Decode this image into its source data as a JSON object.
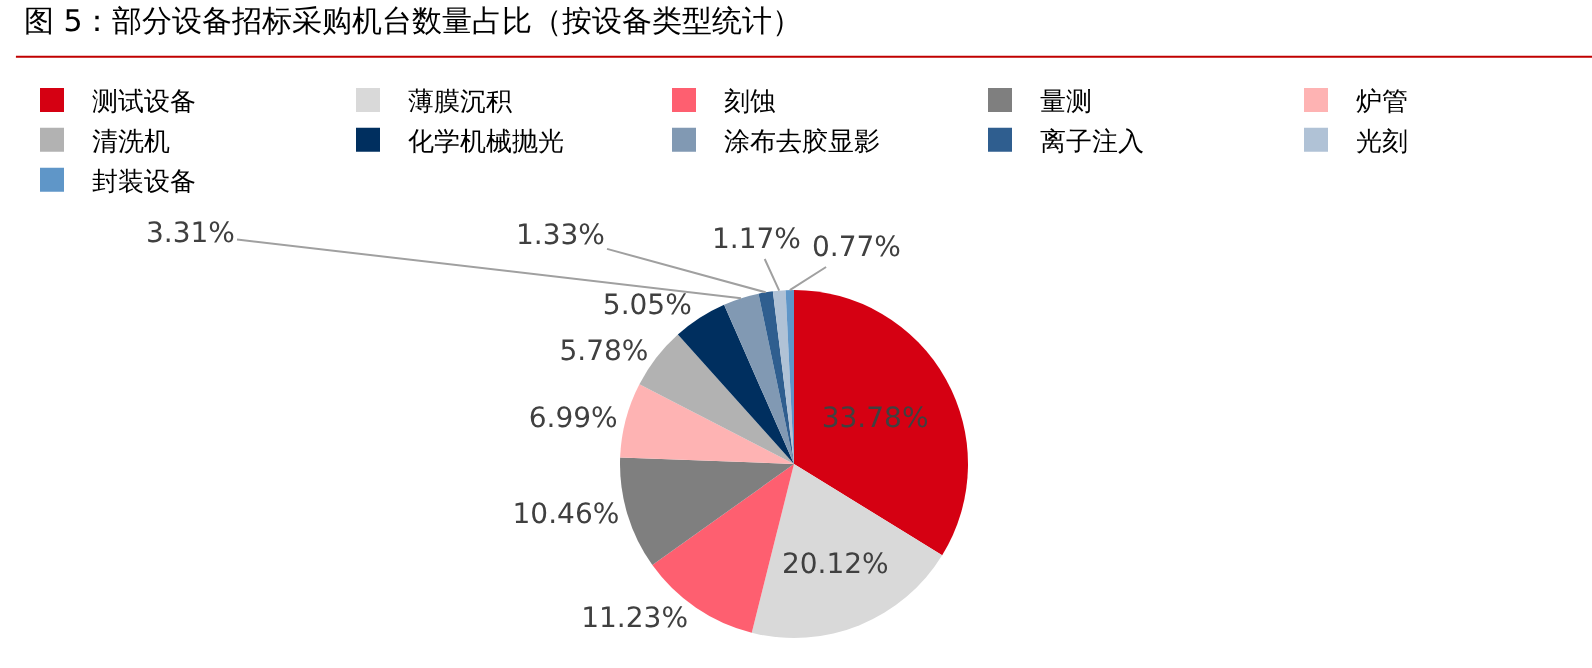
{
  "chart_data": {
    "type": "pie",
    "title": "图 5：部分设备招标采购机台数量占比（按设备类型统计）",
    "categories": [
      "测试设备",
      "薄膜沉积",
      "刻蚀",
      "量测",
      "炉管",
      "清洗机",
      "化学机械抛光",
      "涂布去胶显影",
      "离子注入",
      "光刻",
      "封装设备"
    ],
    "values": [
      33.78,
      20.12,
      11.23,
      10.46,
      6.99,
      5.78,
      5.05,
      3.31,
      1.33,
      1.17,
      0.77
    ],
    "colors": [
      "#d50012",
      "#d9d9d9",
      "#fe5f70",
      "#7f7f7f",
      "#feb3b3",
      "#b2b2b2",
      "#002f5f",
      "#8199b3",
      "#2f5e8f",
      "#b0c2d6",
      "#5f96c8"
    ],
    "value_labels": [
      "33.78%",
      "20.12%",
      "11.23%",
      "10.46%",
      "6.99%",
      "5.78%",
      "5.05%",
      "3.31%",
      "1.33%",
      "1.17%",
      "0.77%"
    ],
    "legend": "top"
  }
}
